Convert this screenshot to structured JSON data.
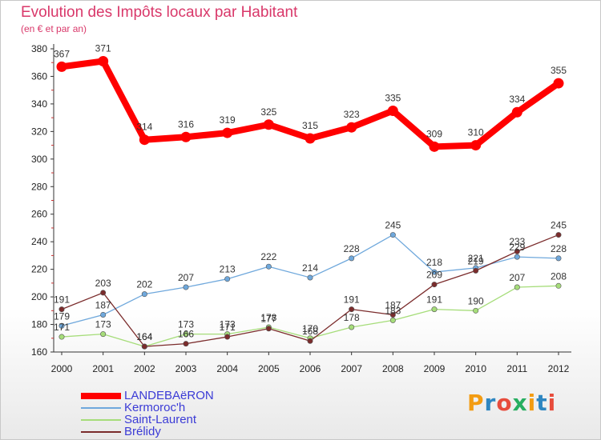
{
  "header": {
    "title": "Evolution des Impôts locaux par Habitant",
    "subtitle": "(en € et par an)"
  },
  "logo": {
    "text": "Proxiti",
    "colors": [
      "#f39c12",
      "#2e86c1",
      "#e74c3c",
      "#27ae60",
      "#f39c12",
      "#2e86c1",
      "#e74c3c"
    ]
  },
  "chart_data": {
    "type": "line",
    "x": [
      "2000",
      "2001",
      "2002",
      "2003",
      "2004",
      "2005",
      "2006",
      "2007",
      "2008",
      "2009",
      "2010",
      "2011",
      "2012"
    ],
    "ylim": [
      160,
      380
    ],
    "yticks": [
      160,
      180,
      200,
      220,
      240,
      260,
      280,
      300,
      320,
      340,
      360,
      380
    ],
    "grid": false,
    "legend_position": "bottom-left",
    "series": [
      {
        "name": "LANDEBAëRON",
        "color": "#ff0000",
        "values": [
          367,
          371,
          314,
          316,
          319,
          325,
          315,
          323,
          335,
          309,
          310,
          334,
          355
        ]
      },
      {
        "name": "Kermoroc'h",
        "color": "#6fa8dc",
        "values": [
          179,
          187,
          202,
          207,
          213,
          222,
          214,
          228,
          245,
          218,
          221,
          229,
          228
        ]
      },
      {
        "name": "Saint-Laurent",
        "color": "#a6dd7a",
        "values": [
          171,
          173,
          164,
          173,
          173,
          178,
          170,
          178,
          183,
          191,
          190,
          207,
          208
        ]
      },
      {
        "name": "Brélidy",
        "color": "#7b2c2c",
        "values": [
          191,
          203,
          164,
          166,
          171,
          177,
          168,
          191,
          187,
          209,
          219,
          233,
          245
        ]
      }
    ]
  }
}
